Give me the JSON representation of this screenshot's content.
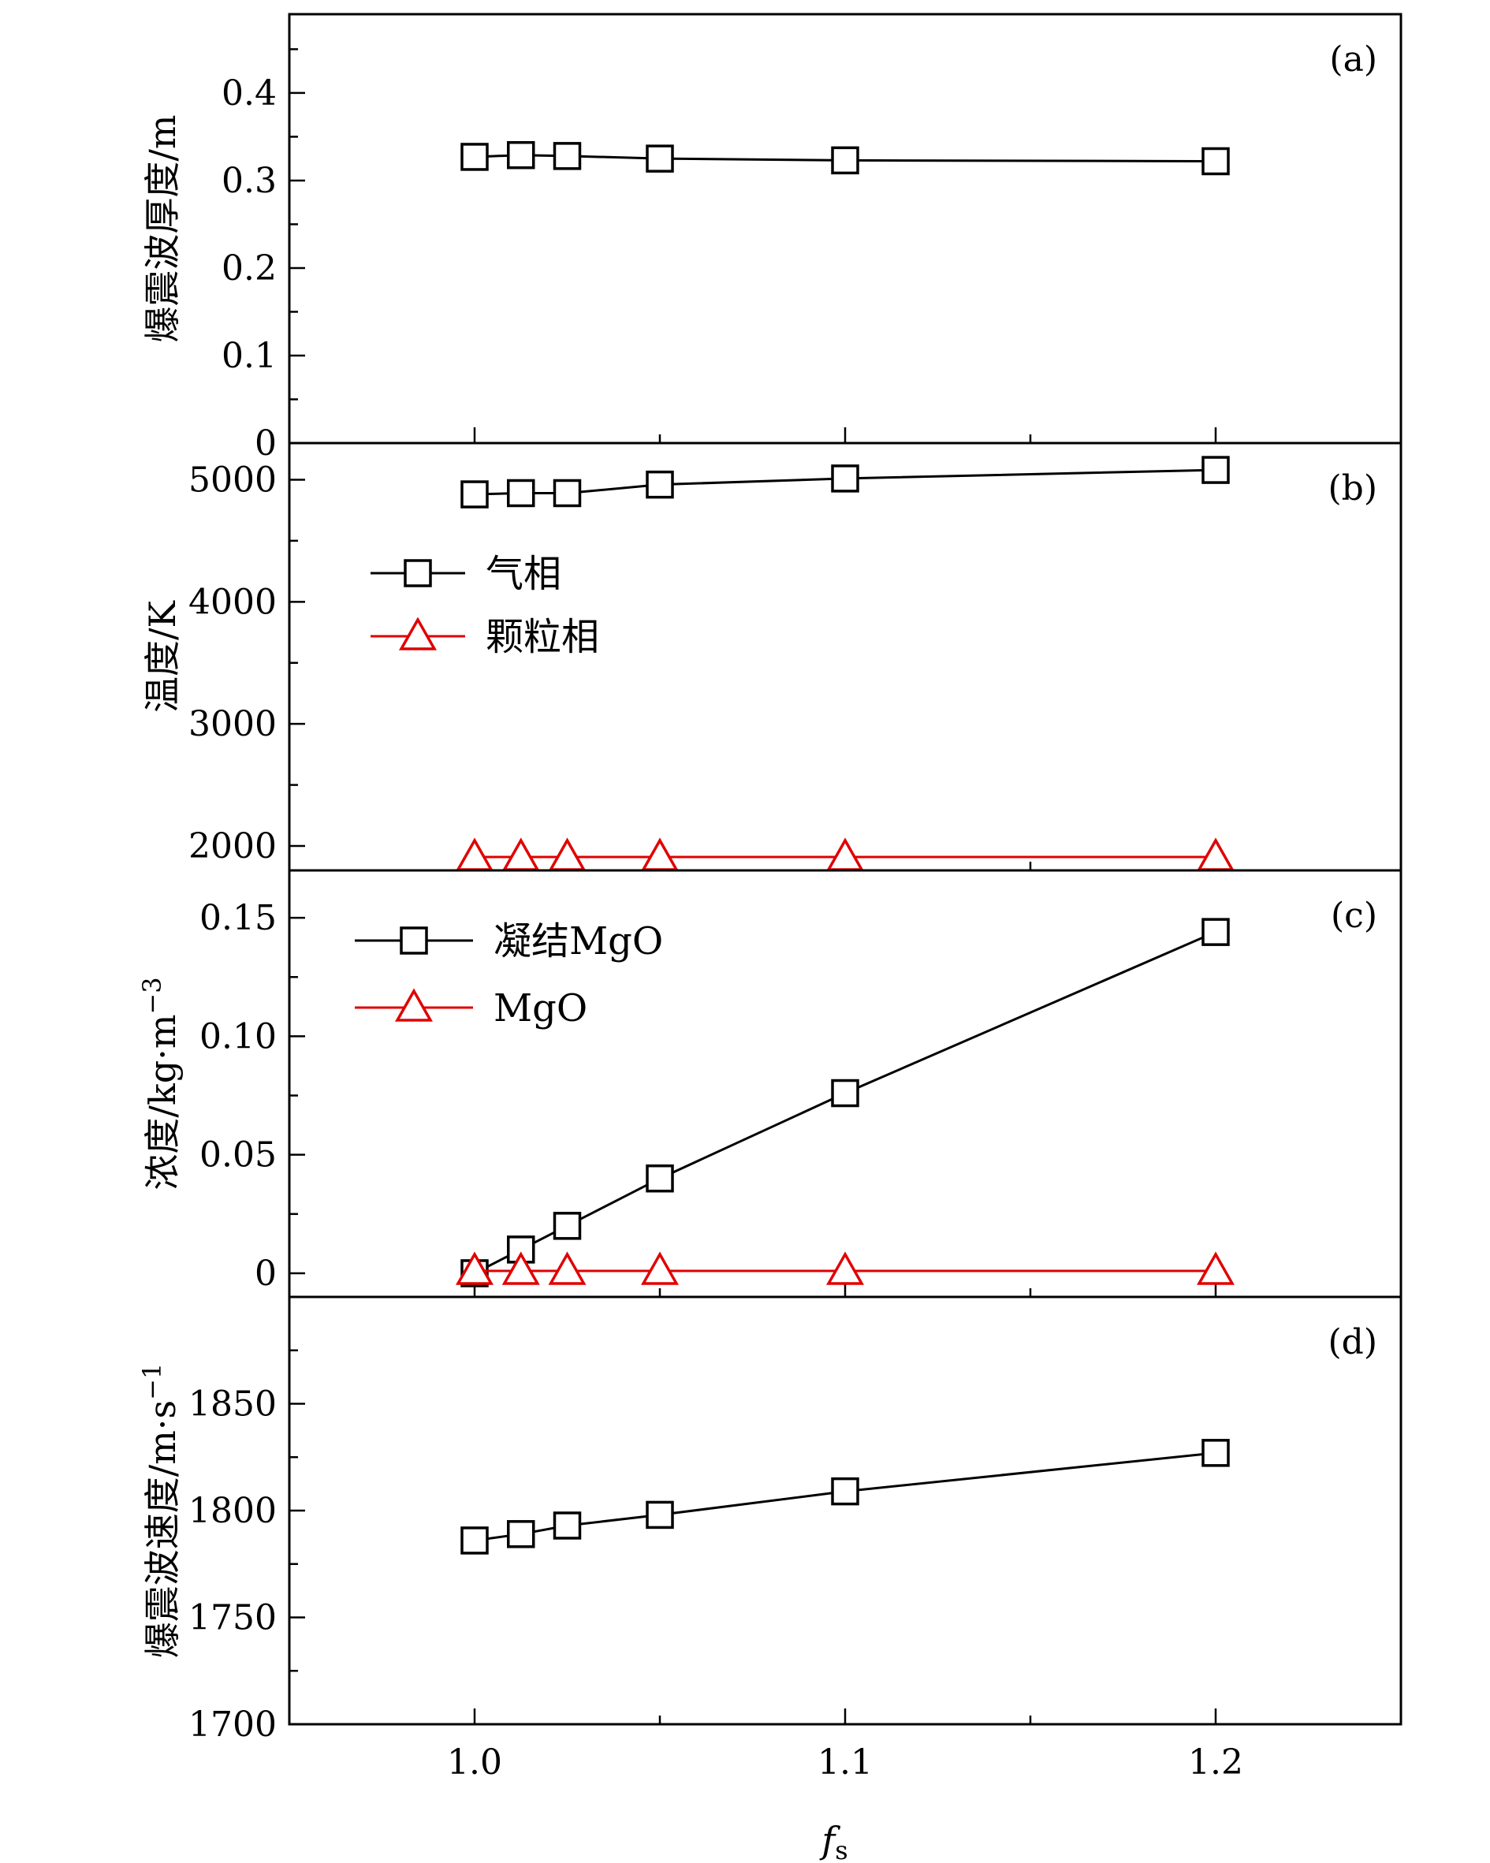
{
  "chart_data": [
    {
      "type": "line",
      "panel_label": "(a)",
      "ylabel": "爆震波厚度/m",
      "ylim": [
        0,
        0.49
      ],
      "yticks": [
        0,
        0.1,
        0.2,
        0.3,
        0.4
      ],
      "ytick_labels": [
        "0",
        "0.1",
        "0.2",
        "0.3",
        "0.4"
      ],
      "x": [
        1.0,
        1.0125,
        1.025,
        1.05,
        1.1,
        1.2
      ],
      "series": [
        {
          "name": "",
          "color": "#000000",
          "marker": "square",
          "values": [
            0.327,
            0.329,
            0.328,
            0.325,
            0.323,
            0.322
          ]
        }
      ],
      "legend": false
    },
    {
      "type": "line",
      "panel_label": "(b)",
      "ylabel": "温度/K",
      "ylim": [
        1800,
        5300
      ],
      "yticks": [
        2000,
        3000,
        4000,
        5000
      ],
      "ytick_labels": [
        "2000",
        "3000",
        "4000",
        "5000"
      ],
      "x": [
        1.0,
        1.0125,
        1.025,
        1.05,
        1.1,
        1.2
      ],
      "series": [
        {
          "name": "气相",
          "color": "#000000",
          "marker": "square",
          "values": [
            4880,
            4890,
            4890,
            4960,
            5010,
            5080
          ]
        },
        {
          "name": "颗粒相",
          "color": "#e00000",
          "marker": "triangle",
          "values": [
            1910,
            1910,
            1910,
            1910,
            1910,
            1910
          ]
        }
      ],
      "legend": true
    },
    {
      "type": "line",
      "panel_label": "(c)",
      "ylabel": "浓度/kg·m",
      "ylabel_sup": "−3",
      "ylim": [
        -0.01,
        0.17
      ],
      "yticks": [
        0,
        0.05,
        0.1,
        0.15
      ],
      "ytick_labels": [
        "0",
        "0.05",
        "0.10",
        "0.15"
      ],
      "x": [
        1.0,
        1.0125,
        1.025,
        1.05,
        1.1,
        1.2
      ],
      "series": [
        {
          "name": "凝结MgO",
          "color": "#000000",
          "marker": "square",
          "values": [
            0.0,
            0.01,
            0.02,
            0.04,
            0.076,
            0.144
          ]
        },
        {
          "name": "MgO",
          "color": "#e00000",
          "marker": "triangle",
          "values": [
            0.001,
            0.001,
            0.001,
            0.001,
            0.001,
            0.001
          ]
        }
      ],
      "legend": true
    },
    {
      "type": "line",
      "panel_label": "(d)",
      "ylabel": "爆震波速度/m·s",
      "ylabel_sup": "−1",
      "ylim": [
        1700,
        1900
      ],
      "yticks": [
        1700,
        1750,
        1800,
        1850
      ],
      "ytick_labels": [
        "1700",
        "1750",
        "1800",
        "1850"
      ],
      "x": [
        1.0,
        1.0125,
        1.025,
        1.05,
        1.1,
        1.2
      ],
      "series": [
        {
          "name": "",
          "color": "#000000",
          "marker": "square",
          "values": [
            1786,
            1789,
            1793,
            1798,
            1809,
            1827
          ]
        }
      ],
      "legend": false
    }
  ],
  "xaxis": {
    "xlim": [
      0.95,
      1.25
    ],
    "major_ticks": [
      1.0,
      1.1,
      1.2
    ],
    "major_tick_labels": [
      "1.0",
      "1.1",
      "1.2"
    ],
    "minor_ticks": [
      0.95,
      1.05,
      1.15,
      1.25
    ],
    "xlabel": "f",
    "xlabel_sub": "s"
  }
}
